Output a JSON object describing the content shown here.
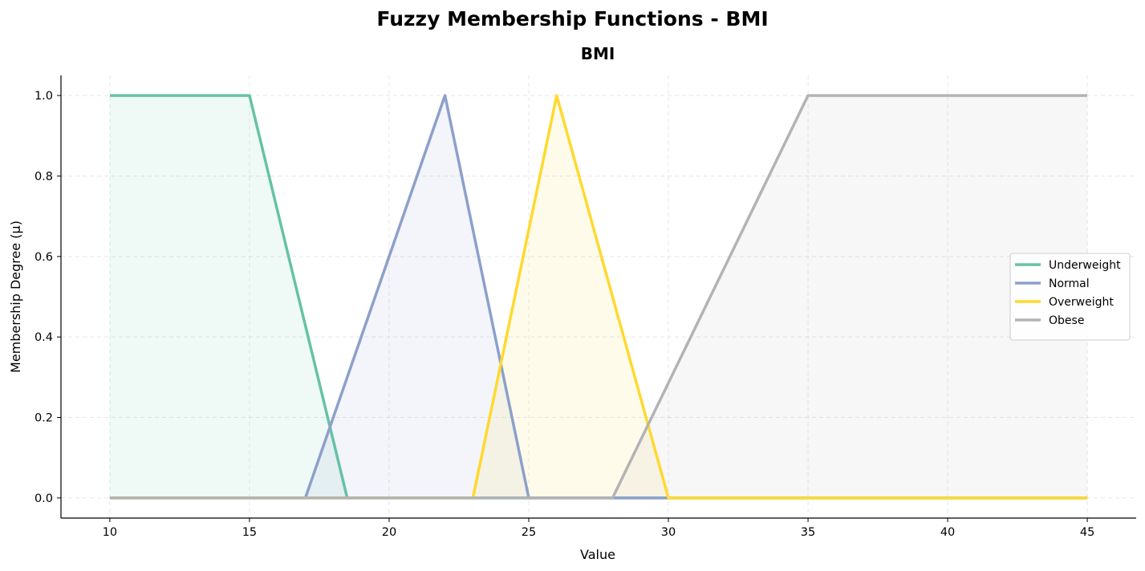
{
  "figure": {
    "suptitle": "Fuzzy Membership Functions - BMI"
  },
  "chart_data": {
    "type": "line",
    "title": "BMI",
    "xlabel": "Value",
    "ylabel": "Membership Degree (μ)",
    "xlim": [
      8.25,
      46.75
    ],
    "ylim": [
      -0.05,
      1.05
    ],
    "x_ticks": [
      10,
      15,
      20,
      25,
      30,
      35,
      40,
      45
    ],
    "y_ticks": [
      0.0,
      0.2,
      0.4,
      0.6,
      0.8,
      1.0
    ],
    "x_tick_labels": [
      "10",
      "15",
      "20",
      "25",
      "30",
      "35",
      "40",
      "45"
    ],
    "y_tick_labels": [
      "0.0",
      "0.2",
      "0.4",
      "0.6",
      "0.8",
      "1.0"
    ],
    "grid": true,
    "legend_position": "center-right",
    "series": [
      {
        "name": "Underweight",
        "color": "#66c2a5",
        "x": [
          10,
          15,
          18.5,
          45
        ],
        "y": [
          1.0,
          1.0,
          0.0,
          0.0
        ],
        "fill_opacity": 0.1
      },
      {
        "name": "Normal",
        "color": "#8da0cb",
        "x": [
          10,
          17,
          22,
          25,
          45
        ],
        "y": [
          0.0,
          0.0,
          1.0,
          0.0,
          0.0
        ],
        "fill_opacity": 0.1
      },
      {
        "name": "Overweight",
        "color": "#ffd92f",
        "x": [
          10,
          23,
          26,
          30,
          45
        ],
        "y": [
          0.0,
          0.0,
          1.0,
          0.0,
          0.0
        ],
        "fill_opacity": 0.1
      },
      {
        "name": "Obese",
        "color": "#b3b3b3",
        "x": [
          10,
          28,
          35,
          45
        ],
        "y": [
          0.0,
          0.0,
          1.0,
          1.0
        ],
        "fill_opacity": 0.1
      }
    ]
  }
}
